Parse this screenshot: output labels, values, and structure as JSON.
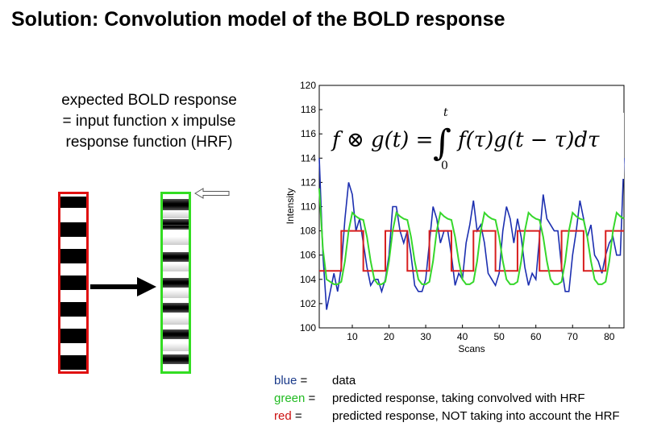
{
  "title": "Solution: Convolution model of the BOLD response",
  "explanation": {
    "line1": "expected BOLD response",
    "line2": "= input function x impulse",
    "line3": "response function (HRF)"
  },
  "colors": {
    "data": "#1c2fb0",
    "convolved": "#36d72b",
    "unconvolved": "#d81e1e",
    "input_box": "#e01010",
    "hrf_box": "#33dd22"
  },
  "legend": [
    {
      "key": "blue",
      "eq": " =",
      "desc": "data",
      "color": "#1a3a8a"
    },
    {
      "key": "green",
      "eq": " =",
      "desc": "predicted response, taking convolved with HRF",
      "color": "#22bb22"
    },
    {
      "key": "red",
      "eq": " =",
      "desc": "predicted response, NOT taking into account the HRF",
      "color": "#cc1111"
    }
  ],
  "chart_data": {
    "type": "line",
    "xlabel": "Scans",
    "ylabel": "Intensity",
    "xlim": [
      1,
      84
    ],
    "ylim": [
      100,
      120
    ],
    "xticks": [
      10,
      20,
      30,
      40,
      50,
      60,
      70,
      80
    ],
    "yticks": [
      100,
      102,
      104,
      106,
      108,
      110,
      112,
      114,
      116,
      118,
      120
    ],
    "equation": {
      "lhs": "f ⊗ g(t) =",
      "integrand": "f(τ)g(t − τ)dτ",
      "upper": "t",
      "lower": "0"
    },
    "x": [
      1,
      2,
      3,
      4,
      5,
      6,
      7,
      8,
      9,
      10,
      11,
      12,
      13,
      14,
      15,
      16,
      17,
      18,
      19,
      20,
      21,
      22,
      23,
      24,
      25,
      26,
      27,
      28,
      29,
      30,
      31,
      32,
      33,
      34,
      35,
      36,
      37,
      38,
      39,
      40,
      41,
      42,
      43,
      44,
      45,
      46,
      47,
      48,
      49,
      50,
      51,
      52,
      53,
      54,
      55,
      56,
      57,
      58,
      59,
      60,
      61,
      62,
      63,
      64,
      65,
      66,
      67,
      68,
      69,
      70,
      71,
      72,
      73,
      74,
      75,
      76,
      77,
      78,
      79,
      80,
      81,
      82,
      83,
      84
    ],
    "series": [
      {
        "name": "blue",
        "color": "#1c2fb0",
        "values": [
          114,
          106,
          101.5,
          103,
          104.5,
          103,
          105,
          109,
          112,
          111,
          108,
          109,
          107,
          105,
          103.5,
          104,
          104,
          103,
          104,
          106,
          110,
          110,
          108,
          107,
          108,
          106,
          103.5,
          103,
          103,
          104,
          107,
          110,
          109,
          107,
          108,
          108,
          106,
          103.5,
          104.5,
          104,
          107,
          108.5,
          110.5,
          108,
          108.5,
          107,
          104.5,
          104,
          103.5,
          104.5,
          108,
          110,
          109,
          107,
          109,
          107.5,
          105,
          103.5,
          104.5,
          104,
          107.5,
          111,
          109,
          108.5,
          108,
          108,
          105,
          103,
          103,
          106,
          108,
          110.5,
          109,
          107.5,
          108.5,
          106,
          105.5,
          104.5,
          106,
          107,
          107.5,
          106,
          106,
          114
        ]
      },
      {
        "name": "green",
        "color": "#36d72b",
        "values": [
          111.5,
          106.5,
          104,
          103.8,
          103.6,
          103.6,
          103.8,
          105.5,
          108,
          109.5,
          109.2,
          109,
          108.9,
          107.5,
          105.5,
          104,
          103.6,
          103.6,
          103.8,
          105.5,
          108,
          109.5,
          109.2,
          109,
          108.9,
          107.5,
          105.5,
          104,
          103.6,
          103.6,
          103.8,
          105.5,
          108,
          109.5,
          109.2,
          109,
          108.9,
          107.5,
          105.5,
          104,
          103.6,
          103.6,
          103.8,
          105.5,
          108,
          109.5,
          109.2,
          109,
          108.9,
          107.5,
          105.5,
          104,
          103.6,
          103.6,
          103.8,
          105.5,
          108,
          109.5,
          109.2,
          109,
          108.9,
          107.5,
          105.5,
          104,
          103.6,
          103.6,
          103.8,
          105.5,
          108,
          109.5,
          109.2,
          109,
          108.9,
          107.5,
          105.5,
          104,
          103.6,
          103.6,
          103.8,
          105.5,
          108,
          109.5,
          109.2,
          109
        ]
      },
      {
        "name": "red",
        "color": "#d81e1e",
        "values": [
          104.7,
          104.7,
          104.7,
          104.7,
          104.7,
          104.7,
          108,
          108,
          108,
          108,
          108,
          108,
          104.7,
          104.7,
          104.7,
          104.7,
          104.7,
          104.7,
          108,
          108,
          108,
          108,
          108,
          108,
          104.7,
          104.7,
          104.7,
          104.7,
          104.7,
          104.7,
          108,
          108,
          108,
          108,
          108,
          108,
          104.7,
          104.7,
          104.7,
          104.7,
          104.7,
          104.7,
          108,
          108,
          108,
          108,
          108,
          108,
          104.7,
          104.7,
          104.7,
          104.7,
          104.7,
          104.7,
          108,
          108,
          108,
          108,
          108,
          108,
          104.7,
          104.7,
          104.7,
          104.7,
          104.7,
          104.7,
          108,
          108,
          108,
          108,
          108,
          108,
          104.7,
          104.7,
          104.7,
          104.7,
          104.7,
          104.7,
          108,
          108,
          108,
          108,
          108,
          108
        ]
      }
    ]
  }
}
